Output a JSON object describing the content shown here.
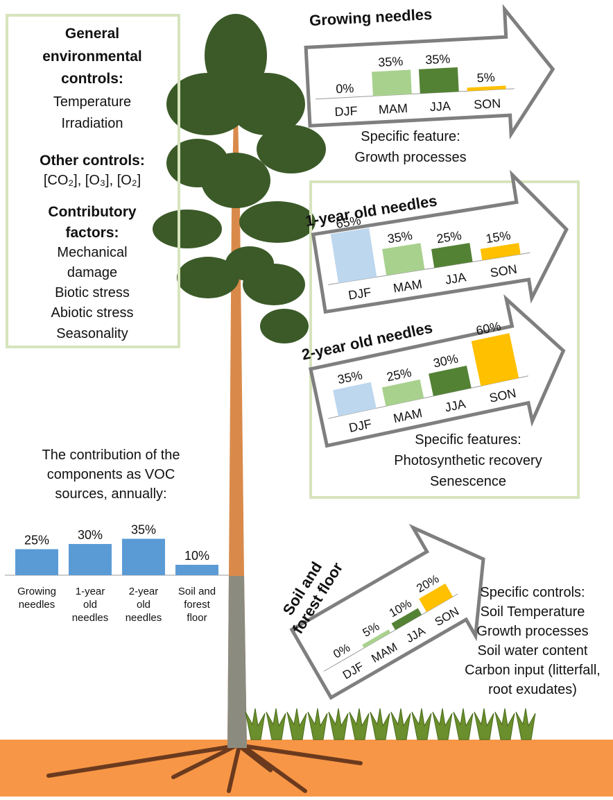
{
  "left_panel": {
    "heading": [
      "General",
      "environmental",
      "controls:"
    ],
    "general": [
      "Temperature",
      "Irradiation"
    ],
    "other_heading": "Other controls:",
    "other": "[CO₂], [O₃], [O₂]",
    "contrib_heading": [
      "Contributory",
      "factors:"
    ],
    "contrib": [
      "Mechanical",
      "damage",
      "Biotic stress",
      "Abiotic stress",
      "Seasonality"
    ]
  },
  "chart_data": [
    {
      "type": "bar",
      "title": "Growing needles",
      "categories": [
        "DJF",
        "MAM",
        "JJA",
        "SON"
      ],
      "values": [
        0,
        35,
        35,
        5
      ],
      "value_labels": [
        "0%",
        "35%",
        "35%",
        "5%"
      ],
      "colors": [
        "#bdd7ee",
        "#a9d18e",
        "#548235",
        "#ffc000"
      ],
      "notes": [
        "Specific feature:",
        "Growth processes"
      ]
    },
    {
      "type": "bar",
      "title": "1-year old needles",
      "categories": [
        "DJF",
        "MAM",
        "JJA",
        "SON"
      ],
      "values": [
        65,
        35,
        25,
        15
      ],
      "value_labels": [
        "65%",
        "35%",
        "25%",
        "15%"
      ],
      "colors": [
        "#bdd7ee",
        "#a9d18e",
        "#548235",
        "#ffc000"
      ]
    },
    {
      "type": "bar",
      "title": "2-year old needles",
      "categories": [
        "DJF",
        "MAM",
        "JJA",
        "SON"
      ],
      "values": [
        35,
        25,
        30,
        60
      ],
      "value_labels": [
        "35%",
        "25%",
        "30%",
        "60%"
      ],
      "colors": [
        "#bdd7ee",
        "#a9d18e",
        "#548235",
        "#ffc000"
      ],
      "notes": [
        "Specific features:",
        "Photosynthetic recovery",
        "Senescence"
      ]
    },
    {
      "type": "bar",
      "title": [
        "Soil and",
        "forest floor"
      ],
      "categories": [
        "DJF",
        "MAM",
        "JJA",
        "SON"
      ],
      "values": [
        0,
        5,
        10,
        20
      ],
      "value_labels": [
        "0%",
        "5%",
        "10%",
        "20%"
      ],
      "colors": [
        "#bdd7ee",
        "#a9d18e",
        "#548235",
        "#ffc000"
      ],
      "notes": [
        "Specific controls:",
        "Soil Temperature",
        "Growth processes",
        "Soil water content",
        "Carbon input (litterfall,",
        "root exudates)"
      ]
    },
    {
      "type": "bar",
      "title": [
        "The contribution of the",
        "components as VOC",
        "sources, annually:"
      ],
      "categories": [
        [
          "Growing",
          "needles"
        ],
        [
          "1-year",
          "old",
          "needles"
        ],
        [
          "2-year",
          "old",
          "needles"
        ],
        [
          "Soil and",
          "forest",
          "floor"
        ]
      ],
      "values": [
        25,
        30,
        35,
        10
      ],
      "value_labels": [
        "25%",
        "30%",
        "35%",
        "10%"
      ],
      "color": "#5b9bd5"
    }
  ]
}
